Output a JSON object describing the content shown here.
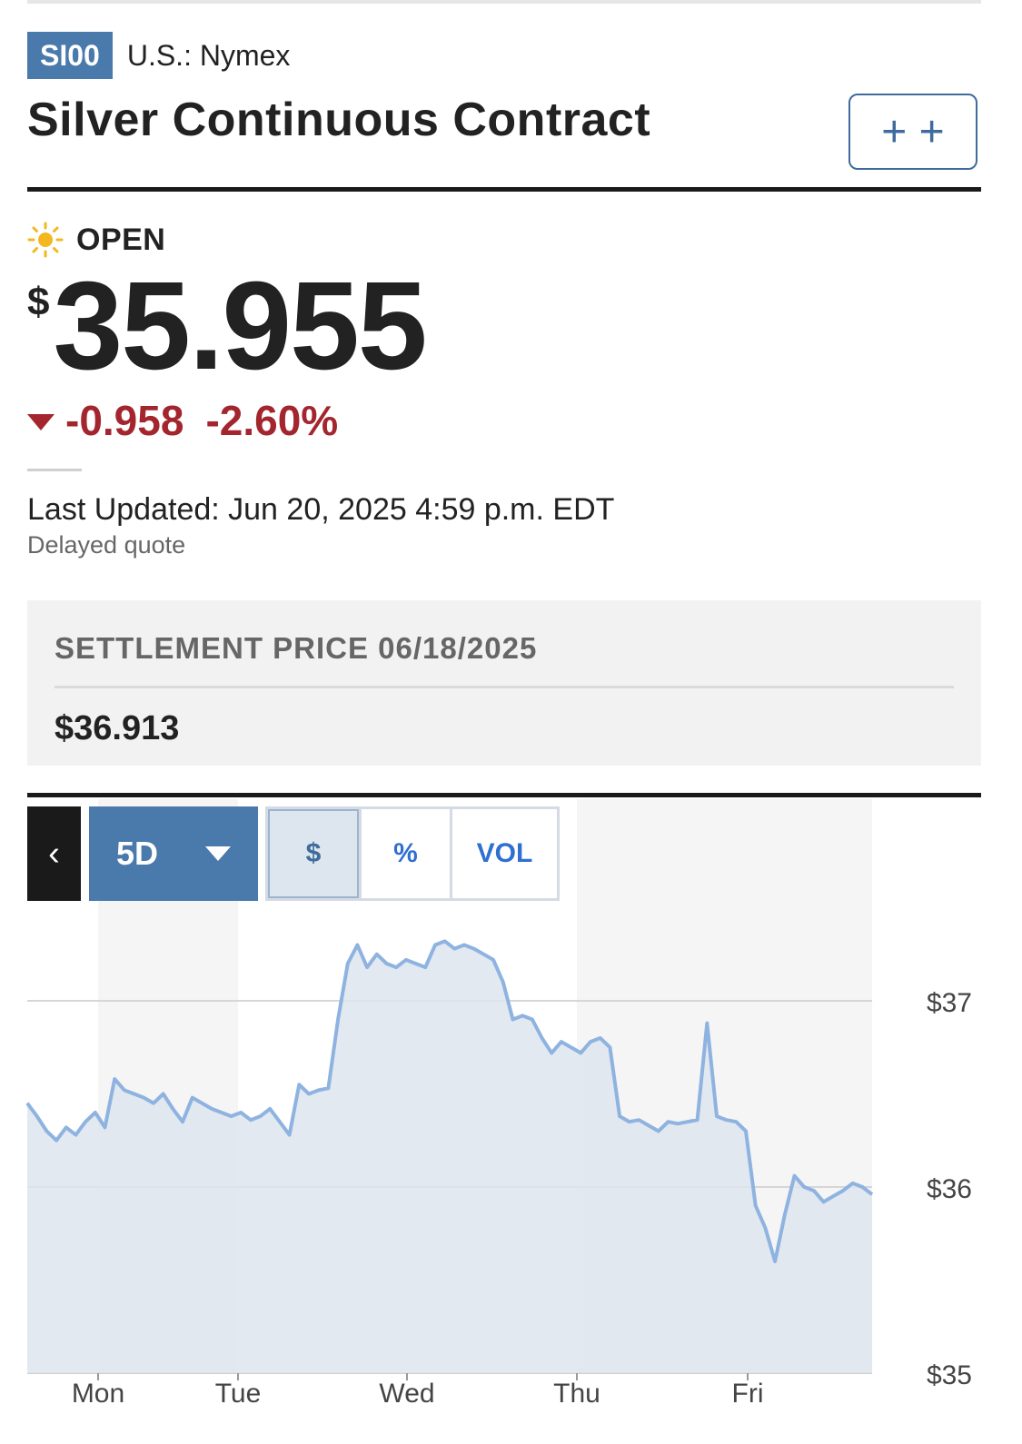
{
  "header": {
    "ticker": "SI00",
    "exchange": "U.S.: Nymex",
    "title": "Silver Continuous Contract",
    "watch_icon": "plus-plus-icon",
    "watch_label": "+ +"
  },
  "quote": {
    "status_icon": "sun-icon",
    "status": "OPEN",
    "currency": "$",
    "price": "35.955",
    "change": "-0.958",
    "change_pct": "-2.60%",
    "last_updated": "Last Updated: Jun 20, 2025 4:59 p.m. EDT",
    "delayed": "Delayed quote"
  },
  "settlement": {
    "label": "SETTLEMENT PRICE 06/18/2025",
    "value": "$36.913"
  },
  "chart_controls": {
    "back_label": "‹",
    "range": "5D",
    "toggles": [
      "$",
      "%",
      "VOL"
    ],
    "active_toggle": "$"
  },
  "colors": {
    "accent": "#4a7aac",
    "negative": "#a3262f",
    "line": "#8fb3e0",
    "area": "#dde5ee"
  },
  "chart_data": {
    "type": "area",
    "title": "",
    "xlabel": "",
    "ylabel": "",
    "x_ticks": [
      "Mon",
      "Tue",
      "Wed",
      "Thu",
      "Fri"
    ],
    "y_ticks": [
      "$35",
      "$36",
      "$37"
    ],
    "ylim": [
      35,
      37.4
    ],
    "grid": true,
    "series": [
      {
        "values": [
          36.45,
          36.38,
          36.3,
          36.25,
          36.32,
          36.28,
          36.35,
          36.4,
          36.32,
          36.58,
          36.52,
          36.5,
          36.48,
          36.45,
          36.5,
          36.42,
          36.35,
          36.48,
          36.45,
          36.42,
          36.4,
          36.38,
          36.4,
          36.36,
          36.38,
          36.42,
          36.35,
          36.28,
          36.55,
          36.5,
          36.52,
          36.53,
          36.9,
          37.2,
          37.3,
          37.18,
          37.25,
          37.2,
          37.18,
          37.22,
          37.2,
          37.18,
          37.3,
          37.32,
          37.28,
          37.3,
          37.28,
          37.25,
          37.22,
          37.1,
          36.9,
          36.92,
          36.9,
          36.8,
          36.72,
          36.78,
          36.75,
          36.72,
          36.78,
          36.8,
          36.75,
          36.38,
          36.35,
          36.36,
          36.33,
          36.3,
          36.35,
          36.34,
          36.35,
          36.36,
          36.88,
          36.38,
          36.36,
          36.35,
          36.3,
          35.9,
          35.78,
          35.6,
          35.85,
          36.06,
          36.0,
          35.98,
          35.92,
          35.95,
          35.98,
          36.02,
          36.0,
          35.96
        ]
      }
    ]
  }
}
